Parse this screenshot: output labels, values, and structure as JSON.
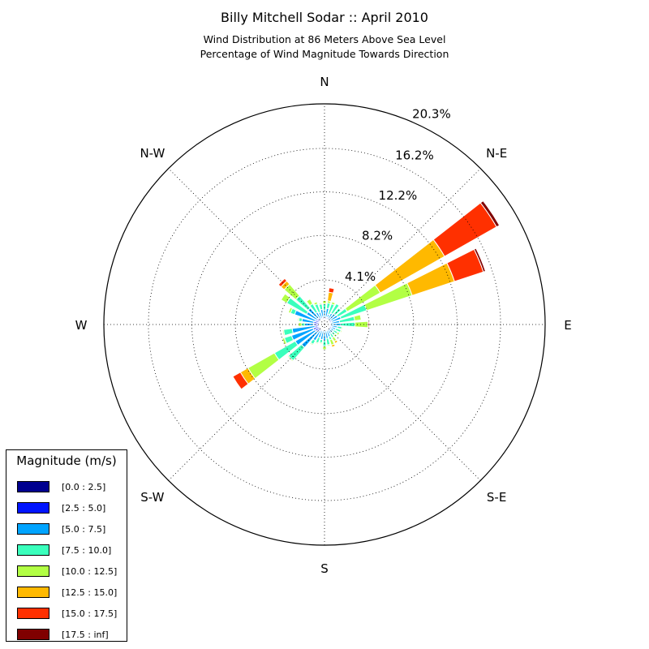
{
  "title": "Billy Mitchell Sodar :: April 2010",
  "subtitle_line1": "Wind Distribution at 86 Meters Above Sea Level",
  "subtitle_line2": "Percentage of Wind Magnitude Towards Direction",
  "legend": {
    "title": "Magnitude (m/s)",
    "items": [
      {
        "label": "[0.0 : 2.5]",
        "color": "#00008f"
      },
      {
        "label": "[2.5 : 5.0]",
        "color": "#0014ff"
      },
      {
        "label": "[5.0 : 7.5]",
        "color": "#00a4ff"
      },
      {
        "label": "[7.5 : 10.0]",
        "color": "#3affbc"
      },
      {
        "label": "[10.0 : 12.5]",
        "color": "#b2ff44"
      },
      {
        "label": "[12.5 : 15.0]",
        "color": "#ffb900"
      },
      {
        "label": "[15.0 : 17.5]",
        "color": "#ff3000"
      },
      {
        "label": "[17.5 : inf]",
        "color": "#800000"
      }
    ]
  },
  "chart_data": {
    "type": "wind-rose",
    "title": "Billy Mitchell Sodar :: April 2010",
    "radial_unit": "%",
    "radial_ticks": [
      "4.1%",
      "8.2%",
      "12.2%",
      "16.2%",
      "20.3%"
    ],
    "radial_tick_values": [
      4.1,
      8.2,
      12.2,
      16.2,
      20.3
    ],
    "rmax": 20.3,
    "direction_labels": [
      "E",
      "N-E",
      "N",
      "N-W",
      "W",
      "S-W",
      "S",
      "S-E"
    ],
    "grid": true,
    "bins": [
      "[0.0 : 2.5]",
      "[2.5 : 5.0]",
      "[5.0 : 7.5]",
      "[7.5 : 10.0]",
      "[10.0 : 12.5]",
      "[12.5 : 15.0]",
      "[15.0 : 17.5]",
      "[17.5 : inf]"
    ],
    "sectors": [
      {
        "direction_deg": 0,
        "cumulative": [
          0.3,
          0.5,
          1.5,
          2.8,
          4.0,
          4.0,
          4.1,
          4.1
        ]
      },
      {
        "direction_deg": 11.25,
        "cumulative": [
          0.3,
          0.6,
          1.4,
          2.8,
          3.4,
          3.4,
          3.4,
          3.4
        ]
      },
      {
        "direction_deg": 22.5,
        "cumulative": [
          0.3,
          0.7,
          1.6,
          4.1,
          8.5,
          12.6,
          15.4,
          15.6
        ]
      },
      {
        "direction_deg": 33.75,
        "cumulative": [
          0.3,
          0.7,
          1.4,
          2.4,
          5.9,
          12.7,
          18.2,
          18.5
        ]
      },
      {
        "direction_deg": 45,
        "cumulative": [
          0.3,
          0.6,
          1.3,
          2.0,
          2.0,
          2.0,
          2.0,
          2.0
        ]
      },
      {
        "direction_deg": 56.25,
        "cumulative": [
          0.3,
          0.5,
          1.2,
          2.2,
          2.2,
          2.2,
          2.2,
          2.2
        ]
      },
      {
        "direction_deg": 67.5,
        "cumulative": [
          0.3,
          0.7,
          1.0,
          2.0,
          2.2,
          2.2,
          2.2,
          2.2
        ]
      },
      {
        "direction_deg": 78.75,
        "cumulative": [
          0.3,
          0.7,
          1.5,
          2.0,
          2.2,
          3.0,
          3.4,
          3.4
        ]
      },
      {
        "direction_deg": 90,
        "cumulative": [
          0.3,
          0.6,
          1.3,
          1.9,
          2.2,
          2.2,
          2.2,
          2.2
        ]
      },
      {
        "direction_deg": 101.25,
        "cumulative": [
          0.3,
          0.7,
          1.4,
          1.9,
          2.0,
          2.0,
          2.0,
          2.0
        ]
      },
      {
        "direction_deg": 112.5,
        "cumulative": [
          0.3,
          0.6,
          1.2,
          2.0,
          2.2,
          2.2,
          2.2,
          2.2
        ]
      },
      {
        "direction_deg": 123.75,
        "cumulative": [
          0.3,
          0.6,
          1.3,
          2.2,
          2.7,
          2.7,
          2.7,
          2.7
        ]
      },
      {
        "direction_deg": 135,
        "cumulative": [
          0.3,
          0.8,
          2.0,
          3.5,
          4.9,
          5.3,
          5.6,
          5.6
        ]
      },
      {
        "direction_deg": 146.25,
        "cumulative": [
          0.3,
          0.8,
          1.9,
          4.0,
          4.6,
          4.6,
          4.6,
          4.6
        ]
      },
      {
        "direction_deg": 157.5,
        "cumulative": [
          0.3,
          0.9,
          2.9,
          3.3,
          3.5,
          3.5,
          3.5,
          3.5
        ]
      },
      {
        "direction_deg": 168.75,
        "cumulative": [
          0.3,
          1.0,
          2.1,
          2.4,
          2.5,
          2.5,
          2.5,
          2.5
        ]
      },
      {
        "direction_deg": 180,
        "cumulative": [
          0.3,
          1.0,
          1.8,
          2.1,
          2.4,
          2.4,
          2.4,
          2.4
        ]
      },
      {
        "direction_deg": 191.25,
        "cumulative": [
          0.3,
          0.9,
          3.0,
          3.8,
          3.9,
          3.9,
          3.9,
          3.9
        ]
      },
      {
        "direction_deg": 202.5,
        "cumulative": [
          0.3,
          1.1,
          3.2,
          3.9,
          4.1,
          4.1,
          4.1,
          4.1
        ]
      },
      {
        "direction_deg": 213.75,
        "cumulative": [
          0.3,
          1.0,
          3.1,
          5.3,
          8.1,
          8.9,
          9.7,
          9.7
        ]
      },
      {
        "direction_deg": 225,
        "cumulative": [
          0.3,
          0.9,
          2.8,
          4.4,
          4.5,
          4.5,
          4.5,
          4.5
        ]
      },
      {
        "direction_deg": 236.25,
        "cumulative": [
          0.3,
          0.7,
          1.7,
          2.1,
          2.2,
          2.2,
          2.2,
          2.2
        ]
      },
      {
        "direction_deg": 247.5,
        "cumulative": [
          0.3,
          0.6,
          1.3,
          1.8,
          1.9,
          1.9,
          1.9,
          1.9
        ]
      },
      {
        "direction_deg": 258.75,
        "cumulative": [
          0.3,
          0.6,
          1.4,
          1.7,
          1.8,
          1.8,
          1.8,
          1.8
        ]
      },
      {
        "direction_deg": 270,
        "cumulative": [
          0.3,
          0.6,
          1.5,
          2.0,
          2.3,
          2.3,
          2.3,
          2.3
        ]
      },
      {
        "direction_deg": 281.25,
        "cumulative": [
          0.3,
          0.6,
          1.3,
          1.9,
          2.0,
          2.0,
          2.0,
          2.0
        ]
      },
      {
        "direction_deg": 292.5,
        "cumulative": [
          0.3,
          0.6,
          1.2,
          1.5,
          2.0,
          2.2,
          2.2,
          2.2
        ]
      },
      {
        "direction_deg": 303.75,
        "cumulative": [
          0.3,
          0.5,
          1.0,
          1.4,
          1.8,
          2.0,
          2.0,
          2.0
        ]
      },
      {
        "direction_deg": 315,
        "cumulative": [
          0.3,
          0.6,
          1.0,
          1.3,
          1.5,
          1.5,
          1.5,
          1.5
        ]
      },
      {
        "direction_deg": 326.25,
        "cumulative": [
          0.3,
          0.7,
          1.0,
          1.4,
          1.6,
          1.6,
          1.6,
          1.6
        ]
      },
      {
        "direction_deg": 337.5,
        "cumulative": [
          0.3,
          0.7,
          1.1,
          1.6,
          1.7,
          1.7,
          1.7,
          1.7
        ]
      },
      {
        "direction_deg": 348.75,
        "cumulative": [
          0.3,
          0.6,
          1.2,
          1.6,
          1.7,
          1.7,
          1.7,
          1.7
        ]
      }
    ]
  }
}
